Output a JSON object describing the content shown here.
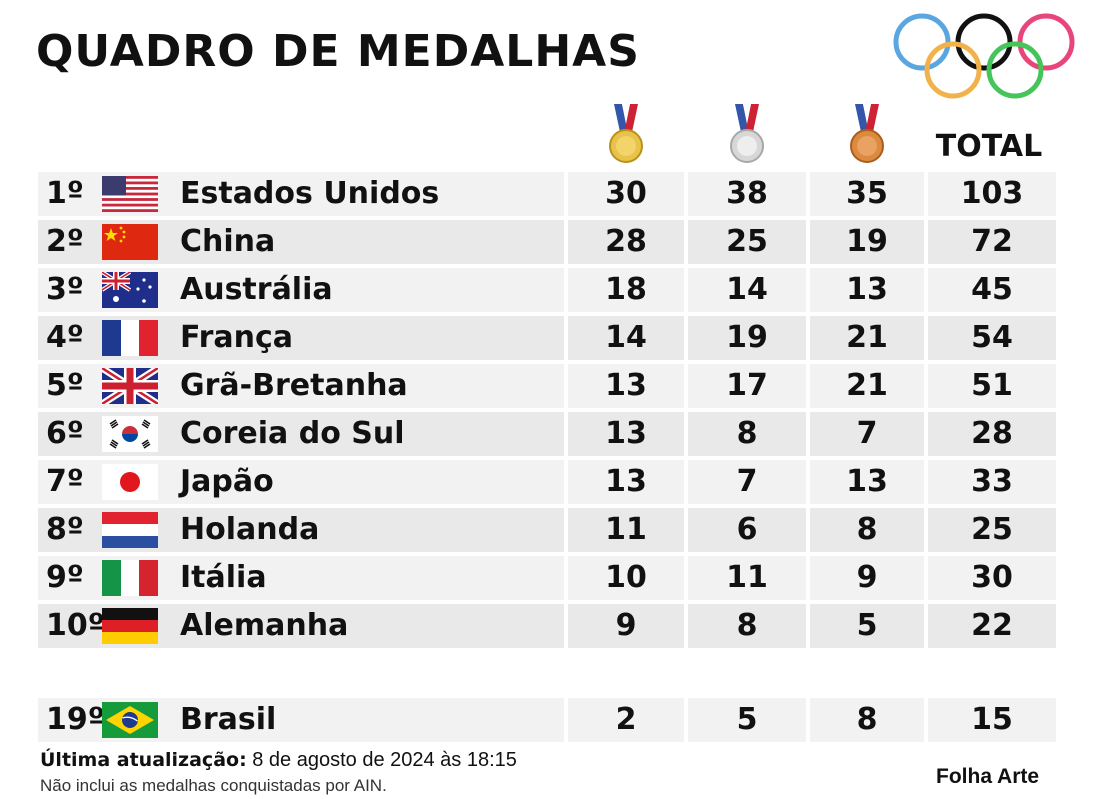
{
  "title": "QUADRO DE MEDALHAS",
  "header": {
    "gold_icon": "gold-medal-icon",
    "silver_icon": "silver-medal-icon",
    "bronze_icon": "bronze-medal-icon",
    "total_label": "TOTAL"
  },
  "colors": {
    "gold": "#e8c24a",
    "silver": "#d7d7d7",
    "bronze": "#dc8a3f",
    "row_bg": "#f2f2f2",
    "row_bg_alt": "#e9e9e9",
    "ring_blue": "#5aa6e0",
    "ring_black": "#111111",
    "ring_red": "#e8467a",
    "ring_yellow": "#f2b24a",
    "ring_green": "#45c45a"
  },
  "rows": [
    {
      "rank": "1º",
      "country": "Estados Unidos",
      "flag": "usa-flag-icon",
      "gold": "30",
      "silver": "38",
      "bronze": "35",
      "total": "103"
    },
    {
      "rank": "2º",
      "country": "China",
      "flag": "china-flag-icon",
      "gold": "28",
      "silver": "25",
      "bronze": "19",
      "total": "72"
    },
    {
      "rank": "3º",
      "country": "Austrália",
      "flag": "australia-flag-icon",
      "gold": "18",
      "silver": "14",
      "bronze": "13",
      "total": "45"
    },
    {
      "rank": "4º",
      "country": "França",
      "flag": "france-flag-icon",
      "gold": "14",
      "silver": "19",
      "bronze": "21",
      "total": "54"
    },
    {
      "rank": "5º",
      "country": "Grã-Bretanha",
      "flag": "uk-flag-icon",
      "gold": "13",
      "silver": "17",
      "bronze": "21",
      "total": "51"
    },
    {
      "rank": "6º",
      "country": "Coreia do Sul",
      "flag": "south-korea-flag-icon",
      "gold": "13",
      "silver": "8",
      "bronze": "7",
      "total": "28"
    },
    {
      "rank": "7º",
      "country": "Japão",
      "flag": "japan-flag-icon",
      "gold": "13",
      "silver": "7",
      "bronze": "13",
      "total": "33"
    },
    {
      "rank": "8º",
      "country": "Holanda",
      "flag": "netherlands-flag-icon",
      "gold": "11",
      "silver": "6",
      "bronze": "8",
      "total": "25"
    },
    {
      "rank": "9º",
      "country": "Itália",
      "flag": "italy-flag-icon",
      "gold": "10",
      "silver": "11",
      "bronze": "9",
      "total": "30"
    },
    {
      "rank": "10º",
      "country": "Alemanha",
      "flag": "germany-flag-icon",
      "gold": "9",
      "silver": "8",
      "bronze": "5",
      "total": "22"
    },
    {
      "rank": "19º",
      "country": "Brasil",
      "flag": "brazil-flag-icon",
      "gold": "2",
      "silver": "5",
      "bronze": "8",
      "total": "15"
    }
  ],
  "footer": {
    "update_label": "Última atualização:",
    "update_value": " 8 de agosto de 2024 às 18:15",
    "note": "Não inclui as medalhas conquistadas por AIN.",
    "credit": "Folha Arte"
  }
}
